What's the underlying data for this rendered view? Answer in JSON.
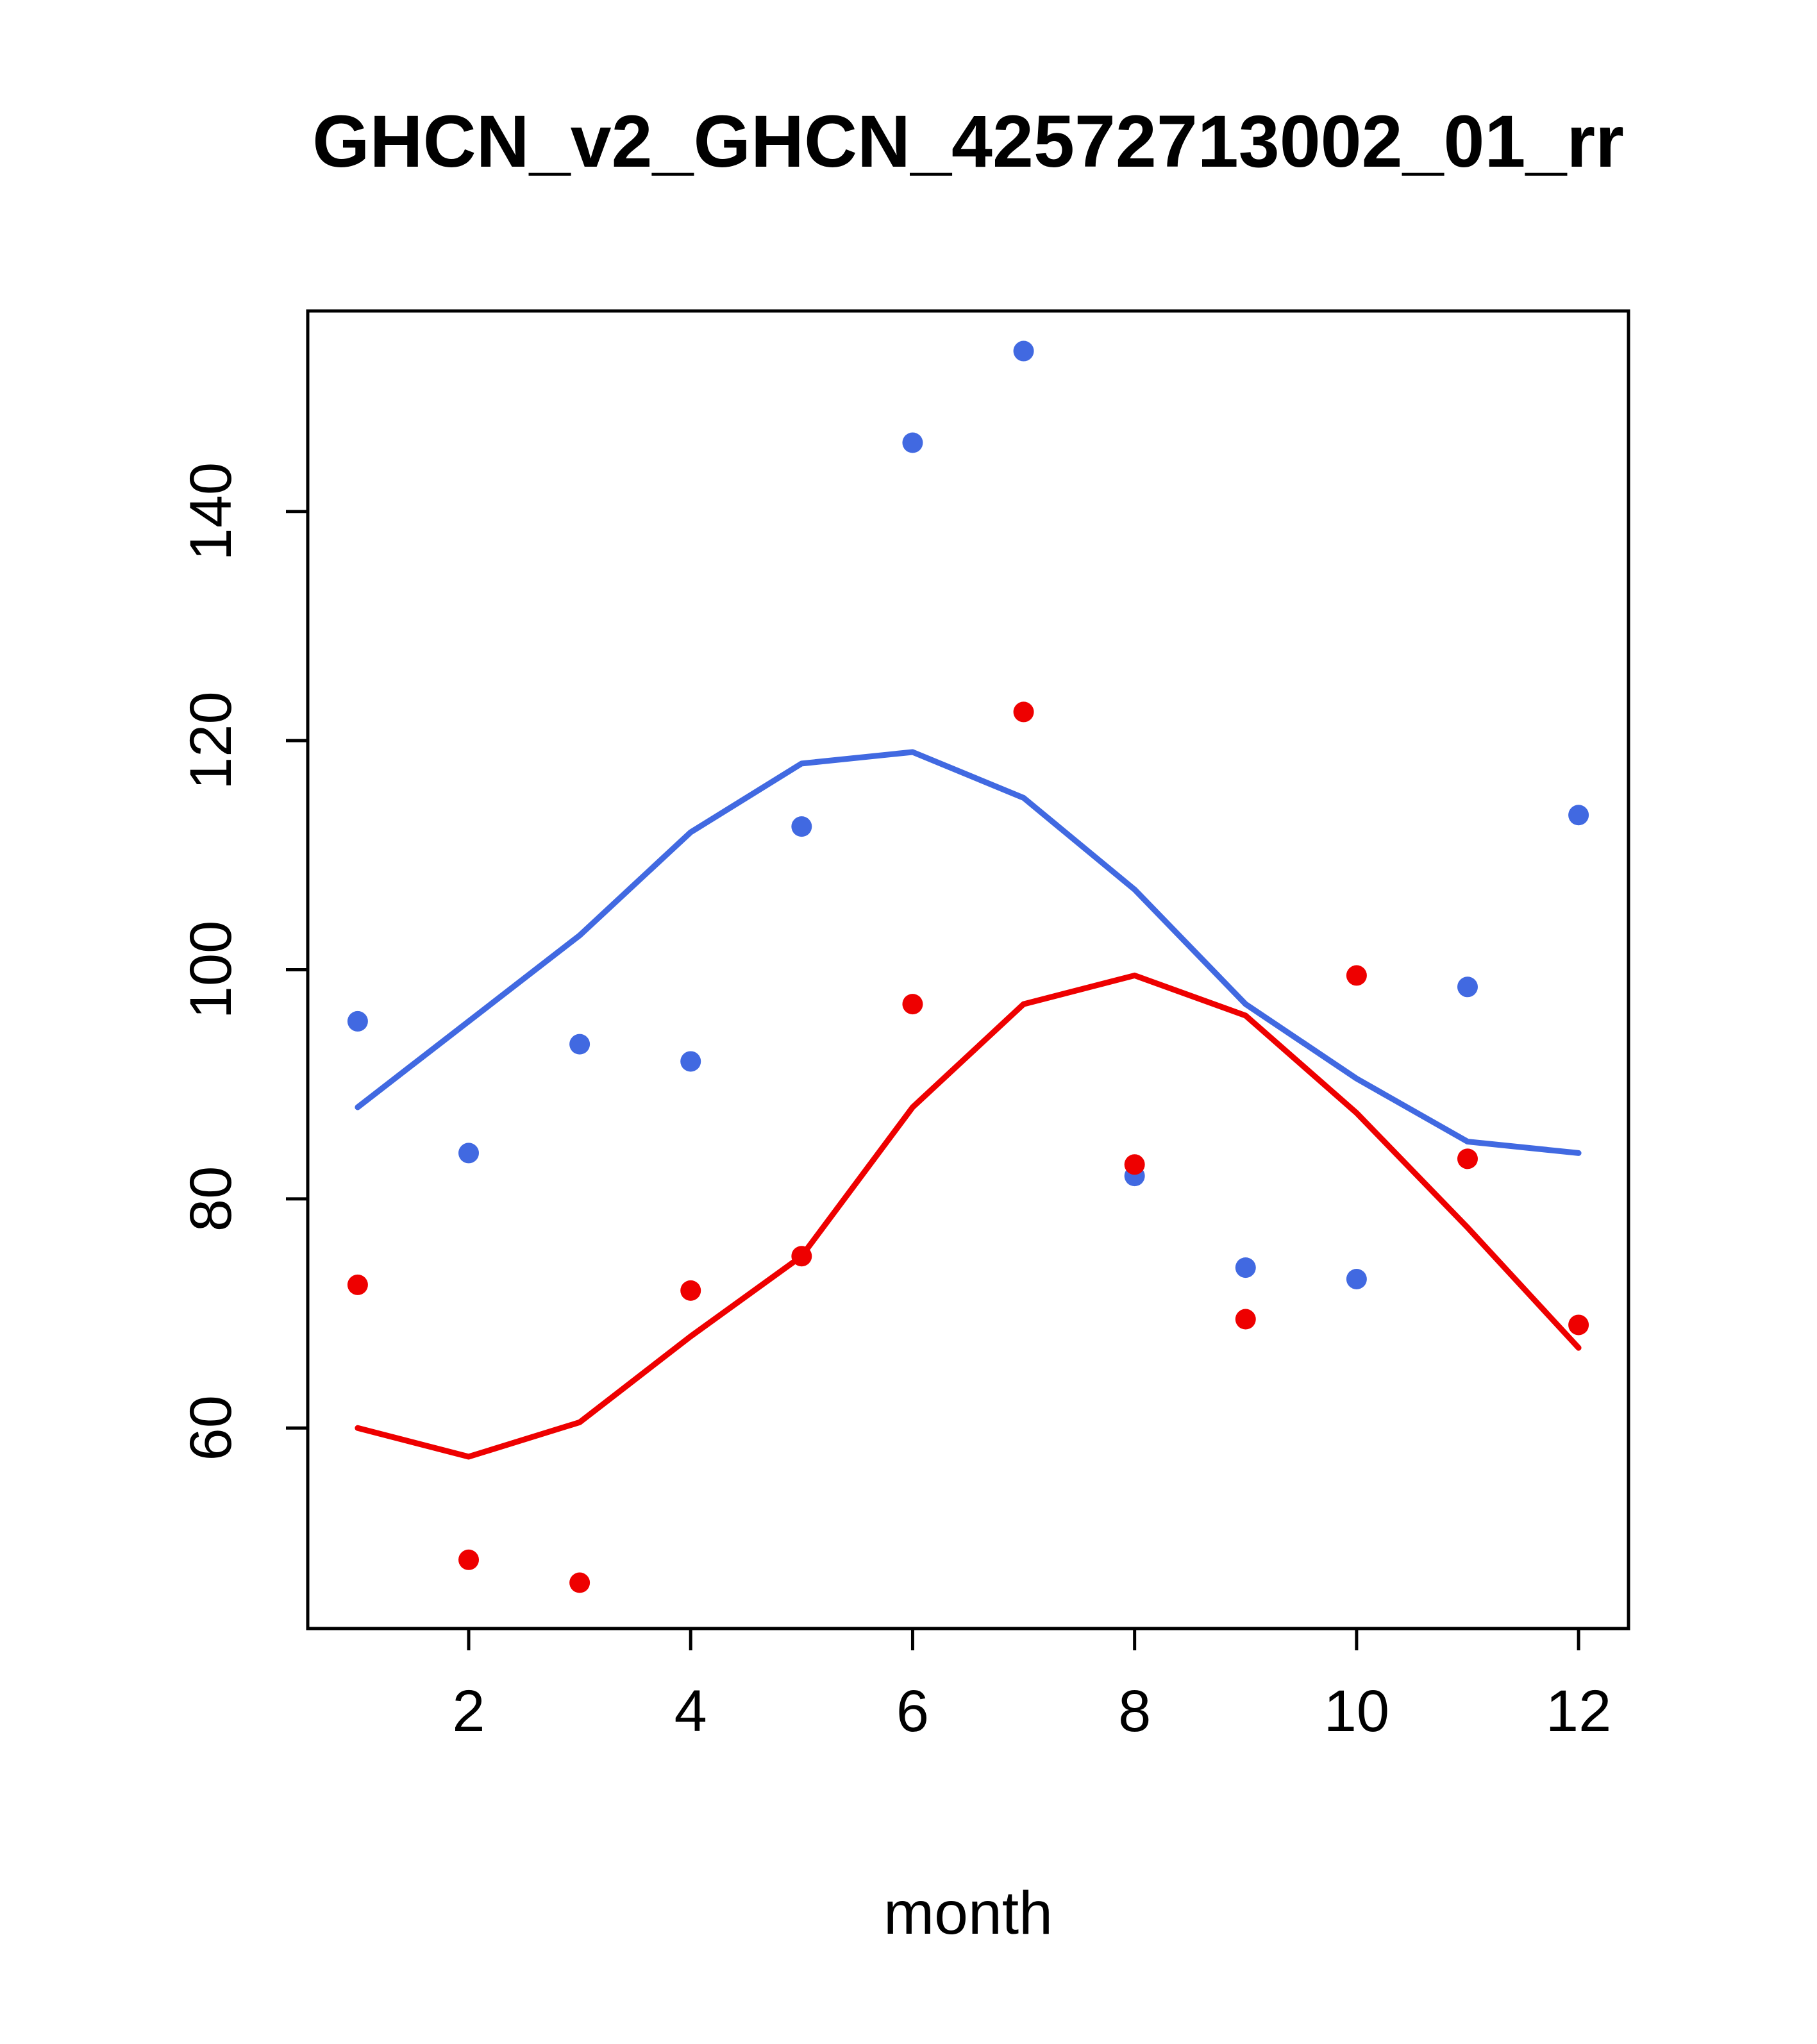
{
  "chart_data": {
    "type": "scatter",
    "title": "GHCN_v2_GHCN_42572713002_01_rr",
    "xlabel": "month",
    "ylabel": "",
    "x_ticks": [
      2,
      4,
      6,
      8,
      10,
      12
    ],
    "y_ticks": [
      60,
      80,
      100,
      120,
      140
    ],
    "xlim": [
      0.55,
      12.45
    ],
    "ylim": [
      42.5,
      157.5
    ],
    "grid": false,
    "legend": "none",
    "x": [
      1,
      2,
      3,
      4,
      5,
      6,
      7,
      8,
      9,
      10,
      11,
      12
    ],
    "series": [
      {
        "name": "blue-smooth-line",
        "type": "line",
        "color": "#4169E1",
        "values": [
          88,
          95.5,
          103,
          112,
          118,
          119,
          115,
          107,
          97,
          90.5,
          85,
          84
        ]
      },
      {
        "name": "red-smooth-line",
        "type": "line",
        "color": "#EE0000",
        "values": [
          60,
          57.5,
          60.5,
          68,
          75,
          88,
          97,
          99.5,
          96,
          87.5,
          77.5,
          67
        ]
      },
      {
        "name": "blue-points",
        "type": "points",
        "color": "#4169E1",
        "values": [
          95.5,
          84,
          93.5,
          92,
          112.5,
          146,
          154,
          82,
          74,
          73,
          98.5,
          113.5
        ]
      },
      {
        "name": "red-points",
        "type": "points",
        "color": "#EE0000",
        "values": [
          72.5,
          48.5,
          46.5,
          72,
          75,
          97,
          122.5,
          83,
          69.5,
          99.5,
          83.5,
          69
        ]
      }
    ]
  }
}
